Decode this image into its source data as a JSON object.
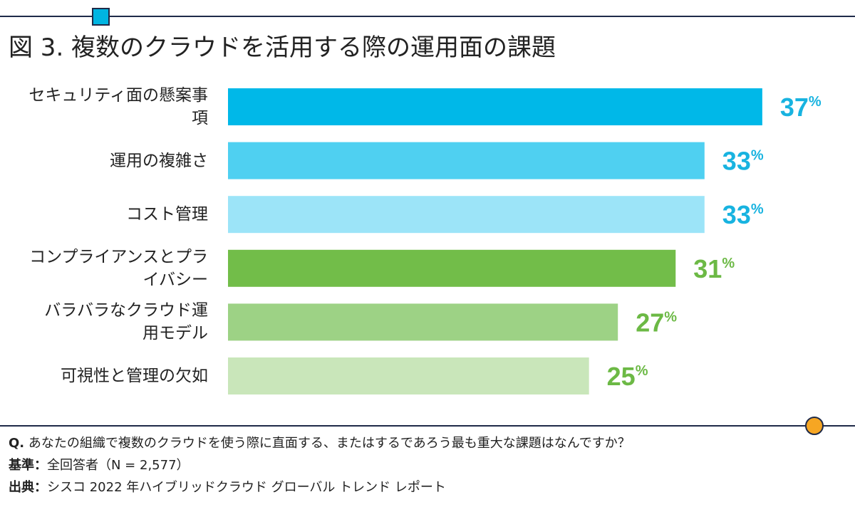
{
  "chart_data": {
    "type": "hbar",
    "title": "図 3. 複数のクラウドを活用する際の運用面の課題",
    "categories": [
      "セキュリティ面の懸案事項",
      "運用の複雑さ",
      "コスト管理",
      "コンプライアンスとプライバシー",
      "バラバラなクラウド運用モデル",
      "可視性と管理の欠如"
    ],
    "values": [
      37,
      33,
      33,
      31,
      27,
      25
    ],
    "value_unit": "%",
    "colors": [
      "#00b8e8",
      "#4fd0f1",
      "#9ce4f8",
      "#72bd49",
      "#9dd285",
      "#c9e6ba"
    ],
    "value_label_colors": [
      "#18b3e0",
      "#18b3e0",
      "#18b3e0",
      "#6cb945",
      "#6cb945",
      "#6cb945"
    ],
    "xlim": [
      0,
      37.5
    ]
  },
  "footer": {
    "question_label": "Q.",
    "question": "あなたの組織で複数のクラウドを使う際に直面する、またはするであろう最も重大な課題はなんですか？",
    "base_label": "基準：",
    "base": "全回答者（N = 2,577）",
    "source_label": "出典：",
    "source": "シスコ 2022 年ハイブリッドクラウド グローバル トレンド レポート"
  }
}
